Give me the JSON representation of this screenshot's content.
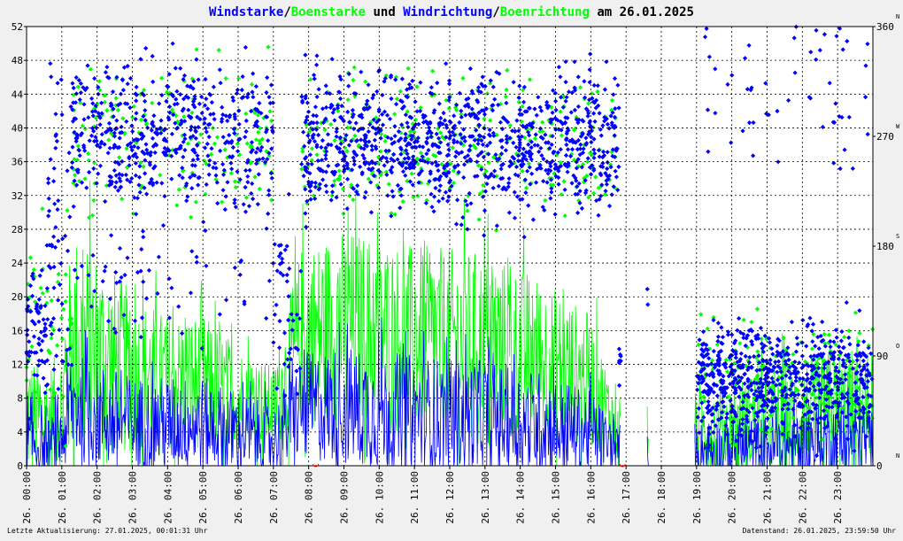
{
  "title": {
    "part1": "Windstarke",
    "sep1": "/",
    "part2": "Boenstarke",
    "mid": " und ",
    "part3": "Windrichtung",
    "sep2": "/",
    "part4": "Boenrichtung",
    "tail": " am 26.01.2025"
  },
  "footer": {
    "left": "Letzte Aktualisierung: 27.01.2025, 00:01:31 Uhr",
    "right": "Datenstand: 26.01.2025, 23:59:50 Uhr"
  },
  "colors": {
    "background": "#f0f0f0",
    "plot_background": "#ffffff",
    "wind": "#0000ff",
    "gust": "#00ff00",
    "grid": "#000000",
    "text": "#000000",
    "marker_red": "#ff0000"
  },
  "chart_data": {
    "type": "line",
    "date": "26.01.2025",
    "x_range_hours": [
      0,
      24
    ],
    "y_left": {
      "ticks": [
        "0",
        "4",
        "8",
        "12",
        "16",
        "20",
        "24",
        "28",
        "32",
        "36",
        "40",
        "44",
        "48",
        "52"
      ],
      "ylim": [
        0,
        52
      ]
    },
    "y_right": {
      "ticks": [
        "0",
        "90",
        "180",
        "270",
        "360"
      ],
      "compass": [
        "N",
        "O",
        "S",
        "W",
        "N"
      ],
      "ylim": [
        0,
        360
      ]
    },
    "x_ticks": [
      "26. 00:00",
      "26. 01:00",
      "26. 02:00",
      "26. 03:00",
      "26. 04:00",
      "26. 05:00",
      "26. 06:00",
      "26. 07:00",
      "26. 08:00",
      "26. 09:00",
      "26. 10:00",
      "26. 11:00",
      "26. 12:00",
      "26. 13:00",
      "26. 14:00",
      "26. 15:00",
      "26. 16:00",
      "26. 17:00",
      "26. 18:00",
      "26. 19:00",
      "26. 20:00",
      "26. 21:00",
      "26. 22:00",
      "26. 23:00"
    ],
    "gaps_hours": [
      [
        16.85,
        17.6
      ],
      [
        17.65,
        18.95
      ]
    ],
    "series": [
      {
        "name": "Windstarke",
        "color": "#0000ff",
        "kind": "line",
        "profile": [
          {
            "t": 0.0,
            "mean": 3,
            "amp": 5
          },
          {
            "t": 0.5,
            "mean": 2,
            "amp": 4
          },
          {
            "t": 1.0,
            "mean": 3,
            "amp": 5
          },
          {
            "t": 1.3,
            "mean": 7,
            "amp": 8
          },
          {
            "t": 2.0,
            "mean": 6,
            "amp": 8
          },
          {
            "t": 3.0,
            "mean": 5,
            "amp": 7
          },
          {
            "t": 4.0,
            "mean": 5,
            "amp": 7
          },
          {
            "t": 5.0,
            "mean": 5,
            "amp": 7
          },
          {
            "t": 6.0,
            "mean": 4,
            "amp": 6
          },
          {
            "t": 7.0,
            "mean": 3,
            "amp": 5
          },
          {
            "t": 7.8,
            "mean": 7,
            "amp": 8
          },
          {
            "t": 9.0,
            "mean": 7,
            "amp": 9
          },
          {
            "t": 11.0,
            "mean": 6,
            "amp": 9
          },
          {
            "t": 13.0,
            "mean": 6,
            "amp": 8
          },
          {
            "t": 14.5,
            "mean": 5,
            "amp": 8
          },
          {
            "t": 16.0,
            "mean": 4,
            "amp": 6
          },
          {
            "t": 16.8,
            "mean": 2,
            "amp": 3
          },
          {
            "t": 19.0,
            "mean": 2,
            "amp": 4
          },
          {
            "t": 21.0,
            "mean": 2,
            "amp": 5
          },
          {
            "t": 23.0,
            "mean": 3,
            "amp": 6
          },
          {
            "t": 24.0,
            "mean": 3,
            "amp": 6
          }
        ]
      },
      {
        "name": "Boenstarke",
        "color": "#00ff00",
        "kind": "line",
        "profile": [
          {
            "t": 0.0,
            "mean": 6,
            "amp": 10
          },
          {
            "t": 0.5,
            "mean": 5,
            "amp": 8
          },
          {
            "t": 1.0,
            "mean": 7,
            "amp": 9
          },
          {
            "t": 1.3,
            "mean": 14,
            "amp": 18
          },
          {
            "t": 2.0,
            "mean": 13,
            "amp": 16
          },
          {
            "t": 3.0,
            "mean": 11,
            "amp": 12
          },
          {
            "t": 4.0,
            "mean": 10,
            "amp": 10
          },
          {
            "t": 5.0,
            "mean": 10,
            "amp": 10
          },
          {
            "t": 6.0,
            "mean": 8,
            "amp": 8
          },
          {
            "t": 7.0,
            "mean": 7,
            "amp": 6
          },
          {
            "t": 7.8,
            "mean": 15,
            "amp": 14
          },
          {
            "t": 9.0,
            "mean": 17,
            "amp": 14
          },
          {
            "t": 11.0,
            "mean": 15,
            "amp": 14
          },
          {
            "t": 13.0,
            "mean": 15,
            "amp": 13
          },
          {
            "t": 14.5,
            "mean": 13,
            "amp": 12
          },
          {
            "t": 16.0,
            "mean": 10,
            "amp": 10
          },
          {
            "t": 16.8,
            "mean": 4,
            "amp": 4
          },
          {
            "t": 19.0,
            "mean": 4,
            "amp": 6
          },
          {
            "t": 21.0,
            "mean": 5,
            "amp": 8
          },
          {
            "t": 23.0,
            "mean": 6,
            "amp": 10
          },
          {
            "t": 24.0,
            "mean": 6,
            "amp": 10
          }
        ]
      },
      {
        "name": "Windrichtung",
        "color": "#0000ff",
        "kind": "scatter",
        "marker": "diamond",
        "axis": "right",
        "clusters": [
          {
            "t0": 0.0,
            "t1": 0.6,
            "center": 110,
            "spread": 60,
            "n": 70
          },
          {
            "t0": 0.6,
            "t1": 1.3,
            "center": 200,
            "spread": 130,
            "n": 60
          },
          {
            "t0": 1.3,
            "t1": 7.0,
            "center": 270,
            "spread": 60,
            "n": 520
          },
          {
            "t0": 1.3,
            "t1": 7.0,
            "center": 150,
            "spread": 50,
            "n": 60
          },
          {
            "t0": 7.0,
            "t1": 7.8,
            "center": 120,
            "spread": 90,
            "n": 45
          },
          {
            "t0": 7.8,
            "t1": 16.8,
            "center": 265,
            "spread": 55,
            "n": 1000
          },
          {
            "t0": 16.8,
            "t1": 17.6,
            "center": 85,
            "spread": 40,
            "n": 60
          },
          {
            "t0": 17.6,
            "t1": 18.0,
            "center": 135,
            "spread": 45,
            "n": 25
          },
          {
            "t0": 18.0,
            "t1": 18.95,
            "center": 115,
            "spread": 35,
            "n": 50
          },
          {
            "t0": 19.0,
            "t1": 24.0,
            "center": 70,
            "spread": 45,
            "n": 700
          },
          {
            "t0": 19.0,
            "t1": 24.0,
            "center": 300,
            "spread": 70,
            "n": 55
          }
        ]
      },
      {
        "name": "Boenrichtung",
        "color": "#00ff00",
        "kind": "scatter",
        "marker": "diamond",
        "axis": "right",
        "clusters": [
          {
            "t0": 0.0,
            "t1": 1.3,
            "center": 120,
            "spread": 80,
            "n": 45
          },
          {
            "t0": 1.3,
            "t1": 7.0,
            "center": 270,
            "spread": 60,
            "n": 160
          },
          {
            "t0": 7.8,
            "t1": 16.8,
            "center": 265,
            "spread": 55,
            "n": 300
          },
          {
            "t0": 16.8,
            "t1": 17.6,
            "center": 90,
            "spread": 40,
            "n": 20
          },
          {
            "t0": 19.0,
            "t1": 24.0,
            "center": 70,
            "spread": 45,
            "n": 180
          }
        ]
      }
    ]
  }
}
